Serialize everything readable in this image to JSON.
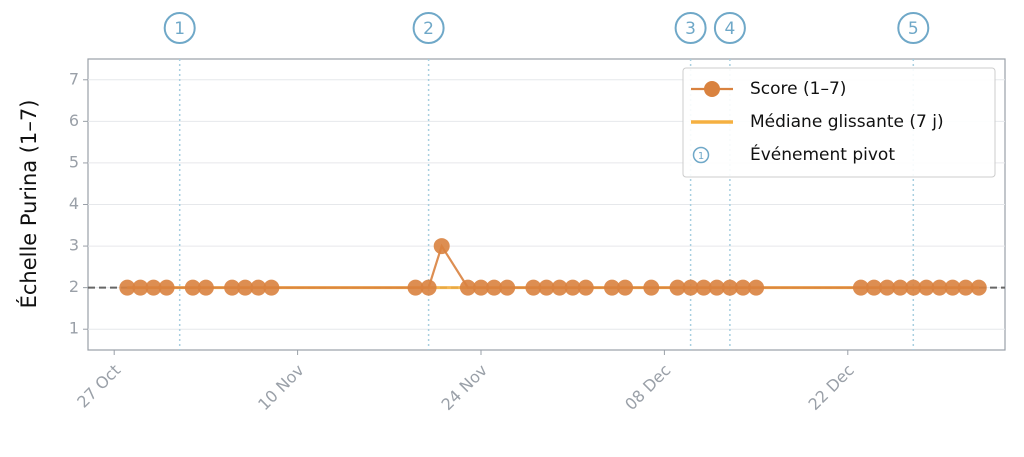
{
  "chart_data": {
    "type": "line",
    "y_label": "Échelle Purina (1–7)",
    "x": [
      "28 Oct",
      "29 Oct",
      "30 Oct",
      "31 Oct",
      "02 Nov",
      "03 Nov",
      "05 Nov",
      "06 Nov",
      "07 Nov",
      "08 Nov",
      "19 Nov",
      "20 Nov",
      "21 Nov",
      "23 Nov",
      "24 Nov",
      "25 Nov",
      "26 Nov",
      "28 Nov",
      "29 Nov",
      "30 Nov",
      "01 Dec",
      "02 Dec",
      "04 Dec",
      "05 Dec",
      "07 Dec",
      "09 Dec",
      "10 Dec",
      "11 Dec",
      "12 Dec",
      "13 Dec",
      "14 Dec",
      "15 Dec",
      "23 Dec",
      "24 Dec",
      "25 Dec",
      "26 Dec",
      "27 Dec",
      "28 Dec",
      "29 Dec",
      "30 Dec",
      "31 Dec",
      "01 Jan"
    ],
    "series": [
      {
        "name": "Score (1–7)",
        "color": "#d9823f",
        "markers": true,
        "values": [
          2,
          2,
          2,
          2,
          2,
          2,
          2,
          2,
          2,
          2,
          2,
          2,
          3,
          2,
          2,
          2,
          2,
          2,
          2,
          2,
          2,
          2,
          2,
          2,
          2,
          2,
          2,
          2,
          2,
          2,
          2,
          2,
          2,
          2,
          2,
          2,
          2,
          2,
          2,
          2,
          2,
          2
        ]
      },
      {
        "name": "Médiane glissante (7 j)",
        "color": "#f5b041",
        "markers": false,
        "values": [
          2,
          2,
          2,
          2,
          2,
          2,
          2,
          2,
          2,
          2,
          2,
          2,
          2,
          2,
          2,
          2,
          2,
          2,
          2,
          2,
          2,
          2,
          2,
          2,
          2,
          2,
          2,
          2,
          2,
          2,
          2,
          2,
          2,
          2,
          2,
          2,
          2,
          2,
          2,
          2,
          2,
          2
        ]
      }
    ],
    "events_name": "Événement pivot",
    "events": [
      {
        "date": "01 Nov",
        "label": "1"
      },
      {
        "date": "20 Nov",
        "label": "2"
      },
      {
        "date": "10 Dec",
        "label": "3"
      },
      {
        "date": "13 Dec",
        "label": "4"
      },
      {
        "date": "27 Dec",
        "label": "5"
      }
    ],
    "hline": 2,
    "xlim": [
      "25 Oct",
      "03 Jan"
    ],
    "xticks": [
      "27 Oct",
      "10 Nov",
      "24 Nov",
      "08 Dec",
      "22 Dec"
    ],
    "ylim": [
      0.5,
      7.5
    ],
    "yticks": [
      1,
      2,
      3,
      4,
      5,
      6,
      7
    ],
    "grid": true,
    "legend": "upper right"
  }
}
